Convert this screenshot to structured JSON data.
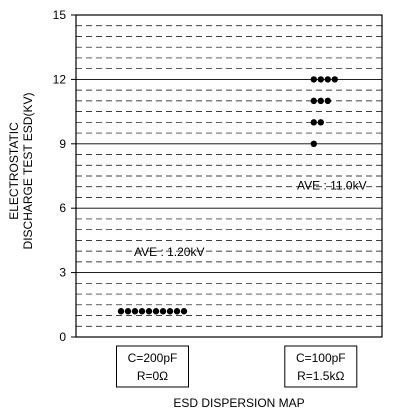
{
  "chart_data": {
    "type": "scatter",
    "ylabel": "ELECTROSTATIC DISCHARGE TEST ESD(KV)",
    "xlabel": "ESD DISPERSION MAP",
    "ylim": [
      0,
      15
    ],
    "yticks": [
      0,
      3,
      6,
      9,
      12,
      15
    ],
    "grid": "solid at major ticks, dashed at minor intervals",
    "categories": [
      {
        "line1": "C=200pF",
        "line2": "R=0Ω"
      },
      {
        "line1": "C=100pF",
        "line2": "R=1.5kΩ"
      }
    ],
    "series": [
      {
        "category_index": 0,
        "points": [
          {
            "y": 1.2,
            "count": 10
          }
        ],
        "annotation": "AVE : 1.20kV"
      },
      {
        "category_index": 1,
        "points": [
          {
            "y": 12,
            "count": 4
          },
          {
            "y": 11,
            "count": 3
          },
          {
            "y": 10,
            "count": 2
          },
          {
            "y": 9,
            "count": 1
          }
        ],
        "annotation": "AVE : 11.0kV"
      }
    ],
    "marker_color": "#000000"
  }
}
